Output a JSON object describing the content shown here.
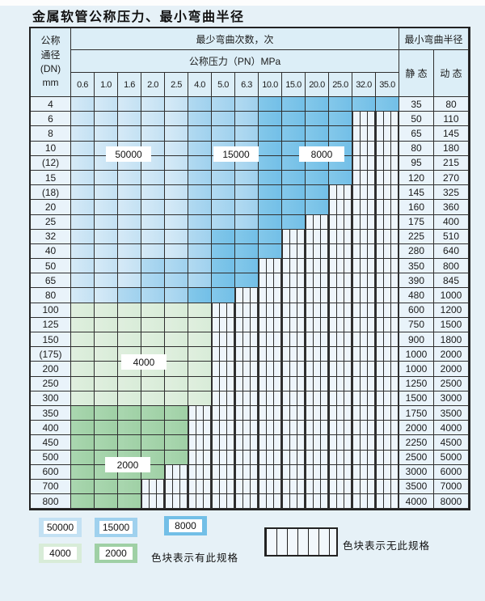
{
  "title": "金属软管公称压力、最小弯曲半径",
  "colors": {
    "page_bg": "#e6f1f7",
    "header_bg": "#dceef7",
    "cell_bg": "#e9f3fa",
    "border": "#2f2f2f",
    "light_blue": "#c3e1f3",
    "medium_blue": "#9fd1ee",
    "dark_blue": "#72bfe7",
    "light_green": "#d8ecd8",
    "dark_green": "#9fd0a5",
    "hatch_bg": "#eef5fb"
  },
  "zone_legend_meaning": {
    "L": "50000",
    "M": "15000",
    "D": "8000",
    "G": "4000",
    "E": "2000",
    "H": "no-spec-hatched"
  },
  "table": {
    "header": {
      "dn_label_lines": [
        "公称",
        "通径",
        "(DN)",
        "mm"
      ],
      "bend_times_label": "最少弯曲次数，次",
      "pressure_label": "公称压力（PN）MPa",
      "pressure_columns": [
        "0.6",
        "1.0",
        "1.6",
        "2.0",
        "2.5",
        "4.0",
        "5.0",
        "6.3",
        "10.0",
        "15.0",
        "20.0",
        "25.0",
        "32.0",
        "35.0"
      ],
      "radius_label": "最小弯曲半径",
      "static_label": "静 态",
      "dynamic_label": "动 态"
    },
    "rows": [
      {
        "dn": "4",
        "pattern": "LLLLLMMMDDDDDD",
        "static": "35",
        "dynamic": "80"
      },
      {
        "dn": "6",
        "pattern": "LLLLLMMMDDDDHH",
        "static": "50",
        "dynamic": "110"
      },
      {
        "dn": "8",
        "pattern": "LLLLLMMMDDDDHH",
        "static": "65",
        "dynamic": "145"
      },
      {
        "dn": "10",
        "pattern": "LLLLLMMMDDDDHH",
        "static": "80",
        "dynamic": "180"
      },
      {
        "dn": "(12)",
        "pattern": "LLLLLMMMDDDDHH",
        "static": "95",
        "dynamic": "215"
      },
      {
        "dn": "15",
        "pattern": "LLLLLMMMDDDDHH",
        "static": "120",
        "dynamic": "270"
      },
      {
        "dn": "(18)",
        "pattern": "LLLLLMMMDDDHHH",
        "static": "145",
        "dynamic": "325"
      },
      {
        "dn": "20",
        "pattern": "LLLLLMMMDDDHHH",
        "static": "160",
        "dynamic": "360"
      },
      {
        "dn": "25",
        "pattern": "LLLLLMMMDDHHHH",
        "static": "175",
        "dynamic": "400"
      },
      {
        "dn": "32",
        "pattern": "LLLLLMDDDHHHHH",
        "static": "225",
        "dynamic": "510"
      },
      {
        "dn": "40",
        "pattern": "LLLLLMDDDHHHHH",
        "static": "280",
        "dynamic": "640"
      },
      {
        "dn": "50",
        "pattern": "LLLMMMDDHHHHHH",
        "static": "350",
        "dynamic": "800"
      },
      {
        "dn": "65",
        "pattern": "LLLMMMDDHHHHHH",
        "static": "390",
        "dynamic": "845"
      },
      {
        "dn": "80",
        "pattern": "LLMMMDDHHHHHHH",
        "static": "480",
        "dynamic": "1000"
      },
      {
        "dn": "100",
        "pattern": "GGGGGGHHHHHHHH",
        "static": "600",
        "dynamic": "1200"
      },
      {
        "dn": "125",
        "pattern": "GGGGGGHHHHHHHH",
        "static": "750",
        "dynamic": "1500"
      },
      {
        "dn": "150",
        "pattern": "GGGGGGHHHHHHHH",
        "static": "900",
        "dynamic": "1800"
      },
      {
        "dn": "(175)",
        "pattern": "GGGGGGHHHHHHHH",
        "static": "1000",
        "dynamic": "2000"
      },
      {
        "dn": "200",
        "pattern": "GGGGGGHHHHHHHH",
        "static": "1000",
        "dynamic": "2000"
      },
      {
        "dn": "250",
        "pattern": "GGGGGGHHHHHHHH",
        "static": "1250",
        "dynamic": "2500"
      },
      {
        "dn": "300",
        "pattern": "GGGGGGHHHHHHHH",
        "static": "1500",
        "dynamic": "3000"
      },
      {
        "dn": "350",
        "pattern": "EEEEEHHHHHHHHH",
        "static": "1750",
        "dynamic": "3500"
      },
      {
        "dn": "400",
        "pattern": "EEEEEHHHHHHHHH",
        "static": "2000",
        "dynamic": "4000"
      },
      {
        "dn": "450",
        "pattern": "EEEEEHHHHHHHHH",
        "static": "2250",
        "dynamic": "4500"
      },
      {
        "dn": "500",
        "pattern": "EEEEEHHHHHHHHH",
        "static": "2500",
        "dynamic": "5000"
      },
      {
        "dn": "600",
        "pattern": "EEEEHHHHHHHHHH",
        "static": "3000",
        "dynamic": "6000"
      },
      {
        "dn": "700",
        "pattern": "EEEHHHHHHHHHHH",
        "static": "3500",
        "dynamic": "7000"
      },
      {
        "dn": "800",
        "pattern": "EEEHHHHHHHHHHH",
        "static": "4000",
        "dynamic": "8000"
      }
    ],
    "overlay_labels": [
      {
        "id": "label-50000",
        "text": "50000"
      },
      {
        "id": "label-15000",
        "text": "15000"
      },
      {
        "id": "label-8000",
        "text": "8000"
      },
      {
        "id": "label-4000",
        "text": "4000"
      },
      {
        "id": "label-2000",
        "text": "2000"
      }
    ]
  },
  "legend": {
    "blue_swatches": [
      {
        "label": "50000"
      },
      {
        "label": "15000"
      },
      {
        "label": "8000"
      }
    ],
    "green_swatches": [
      {
        "label": "4000"
      },
      {
        "label": "2000"
      }
    ],
    "has_spec_text": "色块表示有此规格",
    "no_spec_text": "色块表示无此规格"
  }
}
